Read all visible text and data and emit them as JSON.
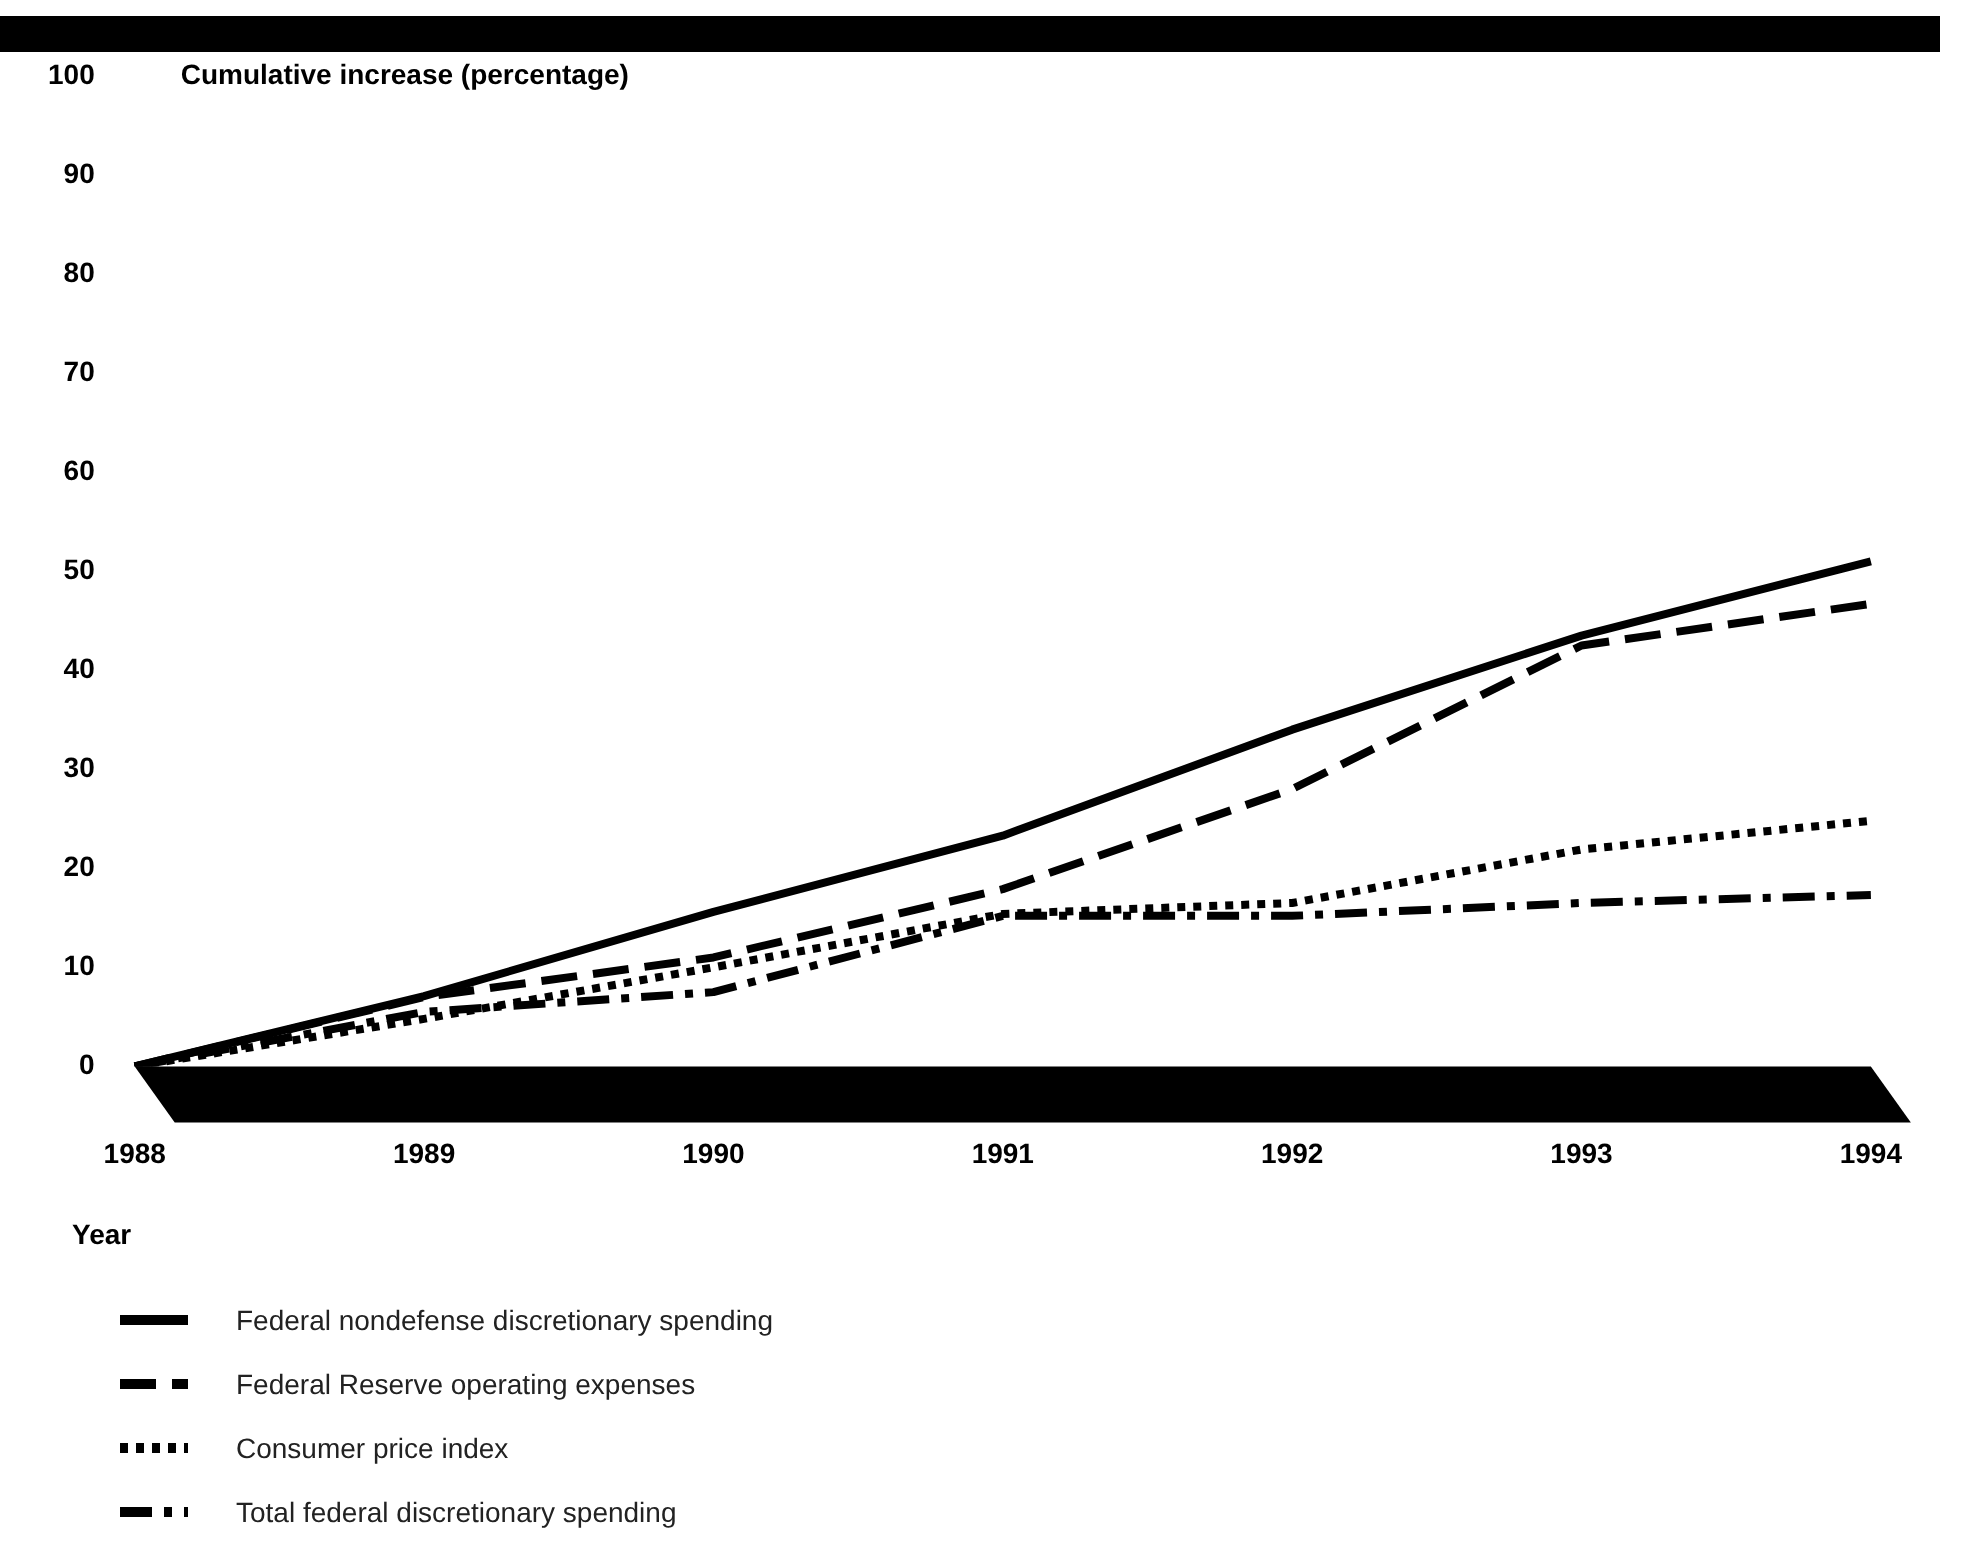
{
  "chart_data": {
    "type": "line",
    "ylabel": "Cumulative increase (percentage)",
    "xlabel": "Year",
    "categories": [
      "1988",
      "1989",
      "1990",
      "1991",
      "1992",
      "1993",
      "1994"
    ],
    "ylim": [
      0,
      100
    ],
    "yticks": [
      0,
      10,
      20,
      30,
      40,
      50,
      60,
      70,
      80,
      90,
      100
    ],
    "grid": false,
    "legend": "bottom",
    "marker": "none",
    "series": [
      {
        "name": "Federal nondefense discretionary spending",
        "color": "#000000",
        "line_style": "solid",
        "values": [
          0,
          7.1,
          15.6,
          23.3,
          34,
          43.5,
          51
        ]
      },
      {
        "name": "Federal Reserve operating expenses",
        "color": "#000000",
        "line_style": "dashed",
        "values": [
          0,
          7,
          11,
          17.9,
          28,
          42.5,
          46.7
        ]
      },
      {
        "name": "Consumer price index",
        "color": "#000000",
        "line_style": "dotted",
        "values": [
          0,
          4.8,
          10,
          15.4,
          16.5,
          21.9,
          24.8
        ]
      },
      {
        "name": "Total federal discretionary spending",
        "color": "#000000",
        "line_style": "dashdot",
        "values": [
          0,
          5.5,
          7.5,
          15.2,
          15.2,
          16.5,
          17.3
        ]
      }
    ]
  }
}
